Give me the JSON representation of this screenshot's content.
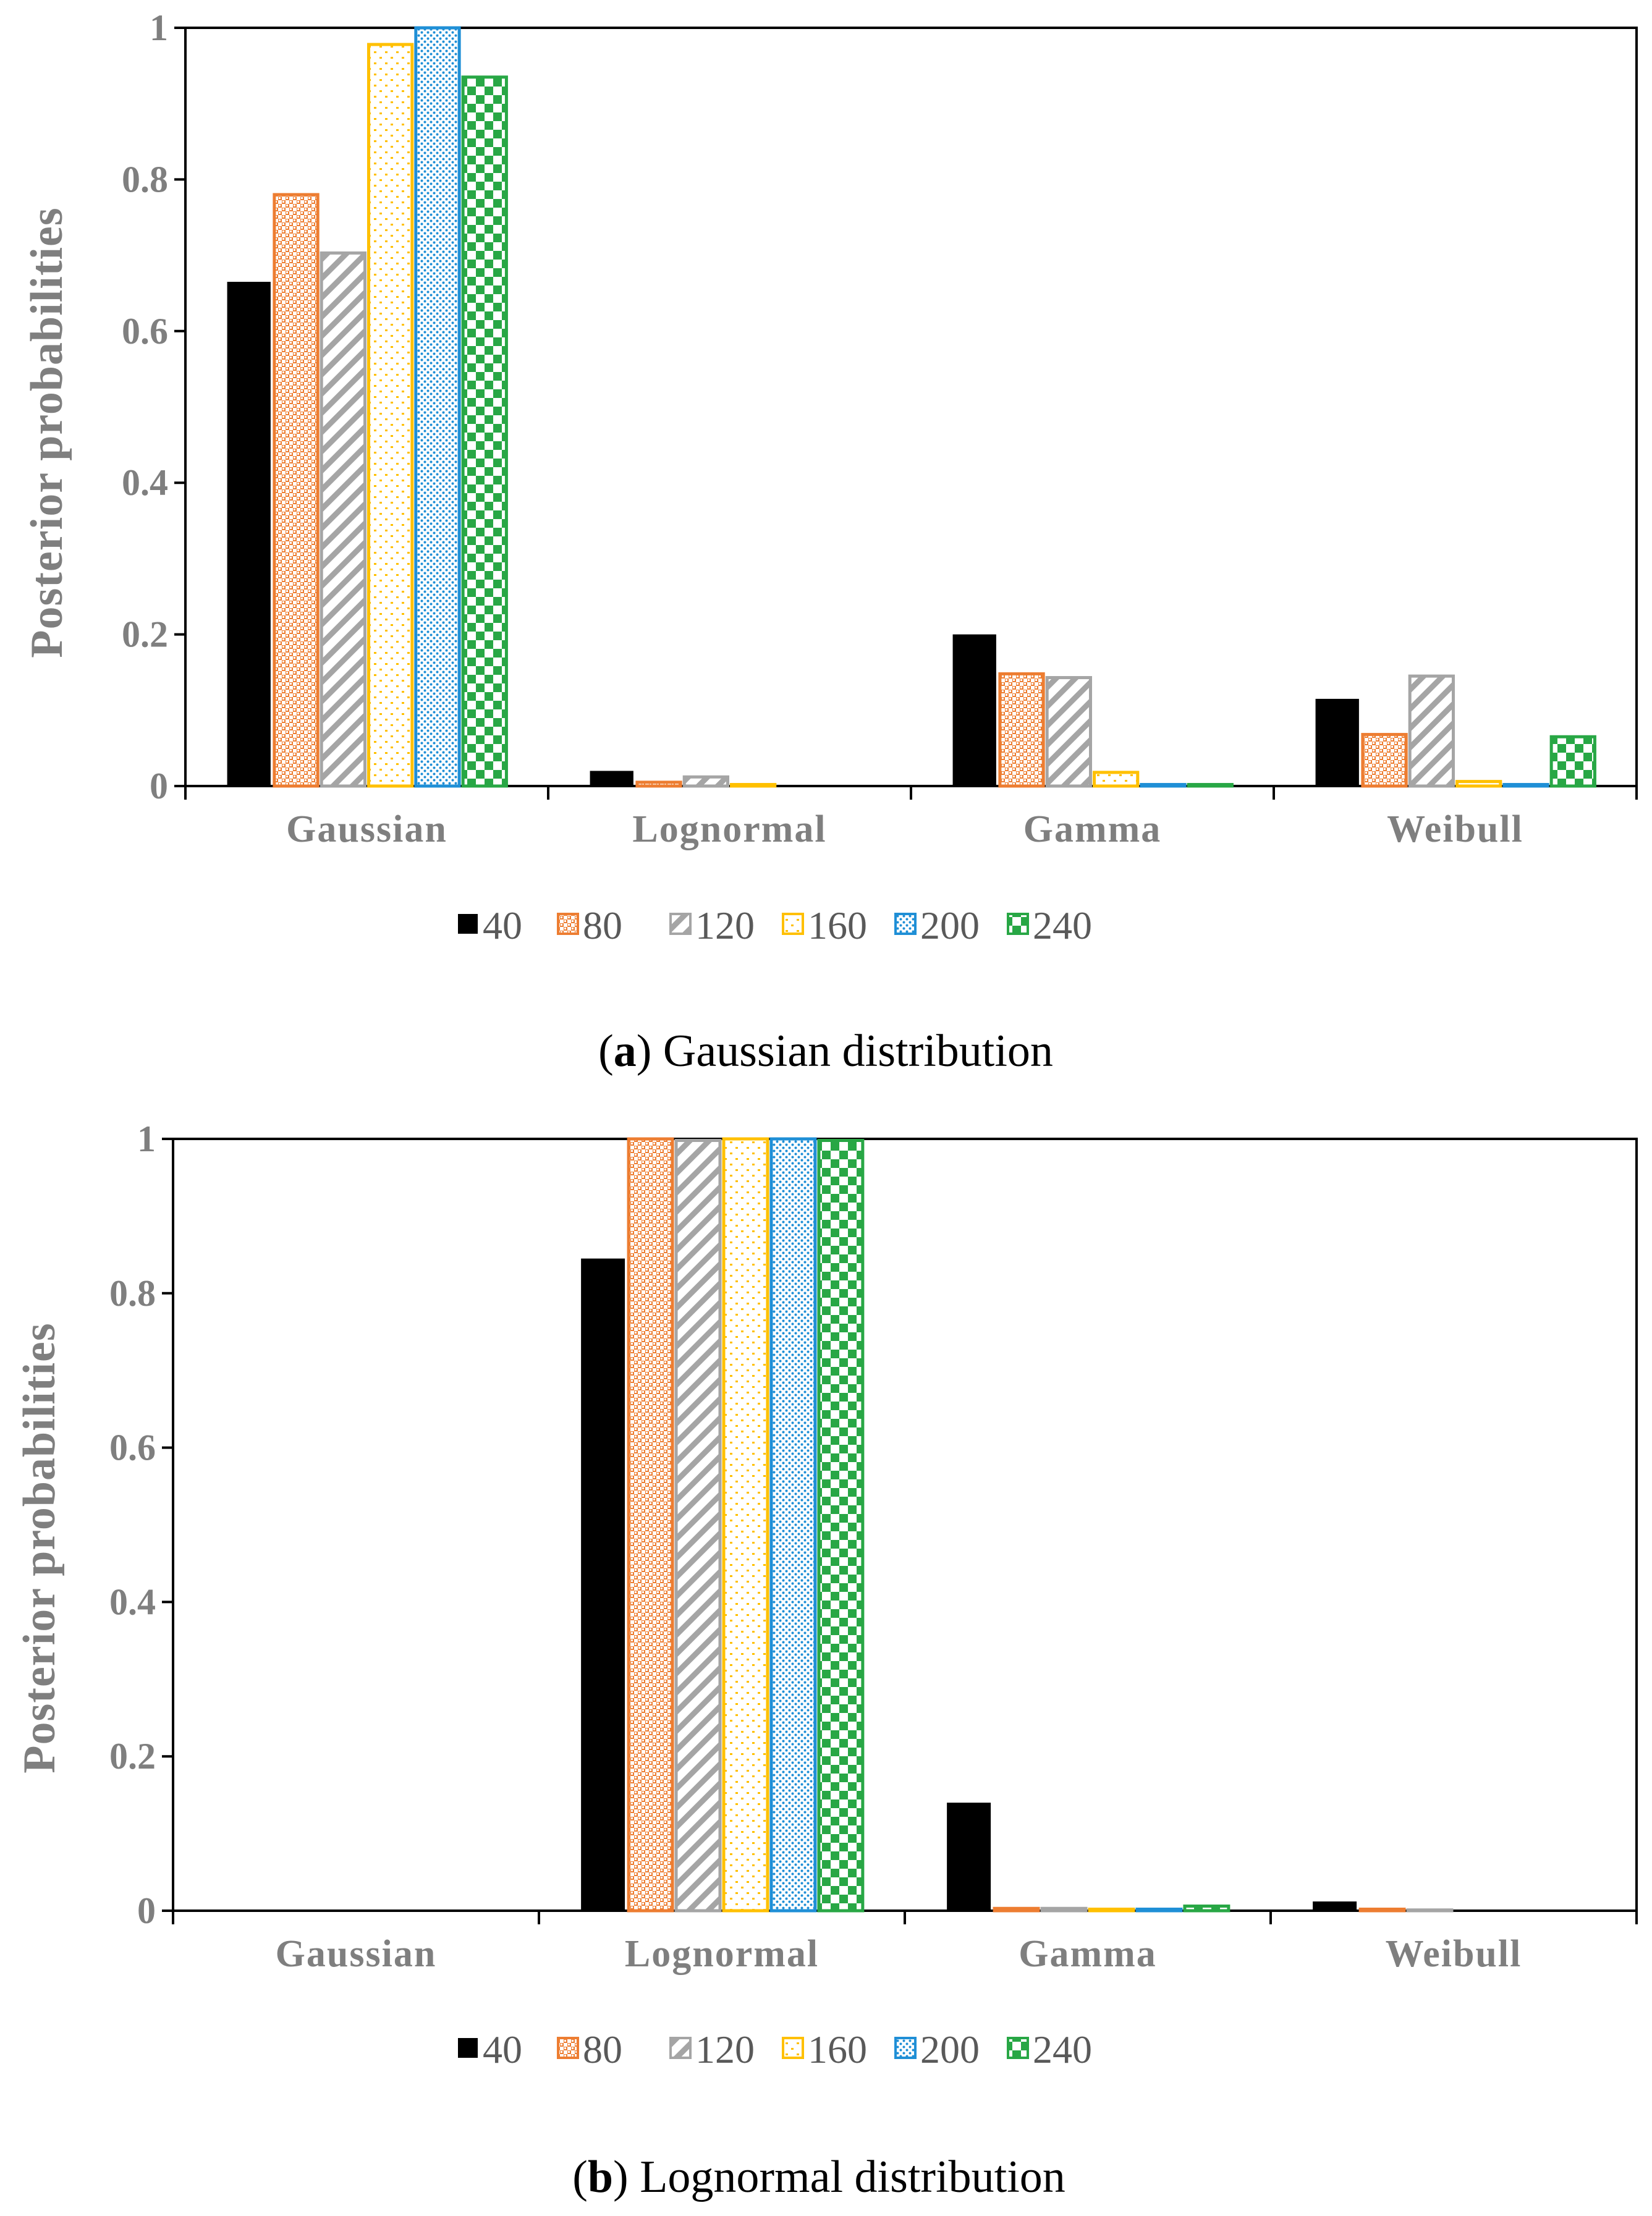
{
  "chart_data": [
    {
      "type": "bar",
      "caption_letter": "a",
      "caption_open": "(",
      "caption_close": ")",
      "caption_text": " Gaussian distribution",
      "ylabel": "Posterior probabilities",
      "xlabel": "",
      "ylim": [
        0,
        1
      ],
      "yticks": [
        "0",
        "0.2",
        "0.4",
        "0.6",
        "0.8",
        "1"
      ],
      "categories": [
        "Gaussian",
        "Lognormal",
        "Gamma",
        "Weibull"
      ],
      "legend_position": "bottom",
      "series": [
        {
          "name": "40",
          "values": [
            0.665,
            0.02,
            0.2,
            0.115
          ]
        },
        {
          "name": "80",
          "values": [
            0.78,
            0.005,
            0.148,
            0.068
          ]
        },
        {
          "name": "120",
          "values": [
            0.703,
            0.012,
            0.143,
            0.145
          ]
        },
        {
          "name": "160",
          "values": [
            0.978,
            0.002,
            0.018,
            0.006
          ]
        },
        {
          "name": "200",
          "values": [
            1.0,
            0.0,
            0.002,
            0.002
          ]
        },
        {
          "name": "240",
          "values": [
            0.935,
            0.0,
            0.002,
            0.065
          ]
        }
      ]
    },
    {
      "type": "bar",
      "caption_letter": "b",
      "caption_open": "(",
      "caption_close": ")",
      "caption_text": " Lognormal distribution",
      "ylabel": "Posterior probabilities",
      "xlabel": "",
      "ylim": [
        0,
        1
      ],
      "yticks": [
        "0",
        "0.2",
        "0.4",
        "0.6",
        "0.8",
        "1"
      ],
      "categories": [
        "Gaussian",
        "Lognormal",
        "Gamma",
        "Weibull"
      ],
      "legend_position": "bottom",
      "series": [
        {
          "name": "40",
          "values": [
            0.0,
            0.845,
            0.14,
            0.012
          ]
        },
        {
          "name": "80",
          "values": [
            0.0,
            1.0,
            0.003,
            0.002
          ]
        },
        {
          "name": "120",
          "values": [
            0.0,
            0.998,
            0.003,
            0.001
          ]
        },
        {
          "name": "160",
          "values": [
            0.0,
            1.0,
            0.002,
            0.0
          ]
        },
        {
          "name": "200",
          "values": [
            0.0,
            1.0,
            0.002,
            0.0
          ]
        },
        {
          "name": "240",
          "values": [
            0.0,
            0.998,
            0.006,
            0.0
          ]
        }
      ]
    }
  ],
  "series_colors": [
    "#000000",
    "#ed7d31",
    "#a5a5a5",
    "#ffc000",
    "#1f8fd6",
    "#28a745"
  ]
}
